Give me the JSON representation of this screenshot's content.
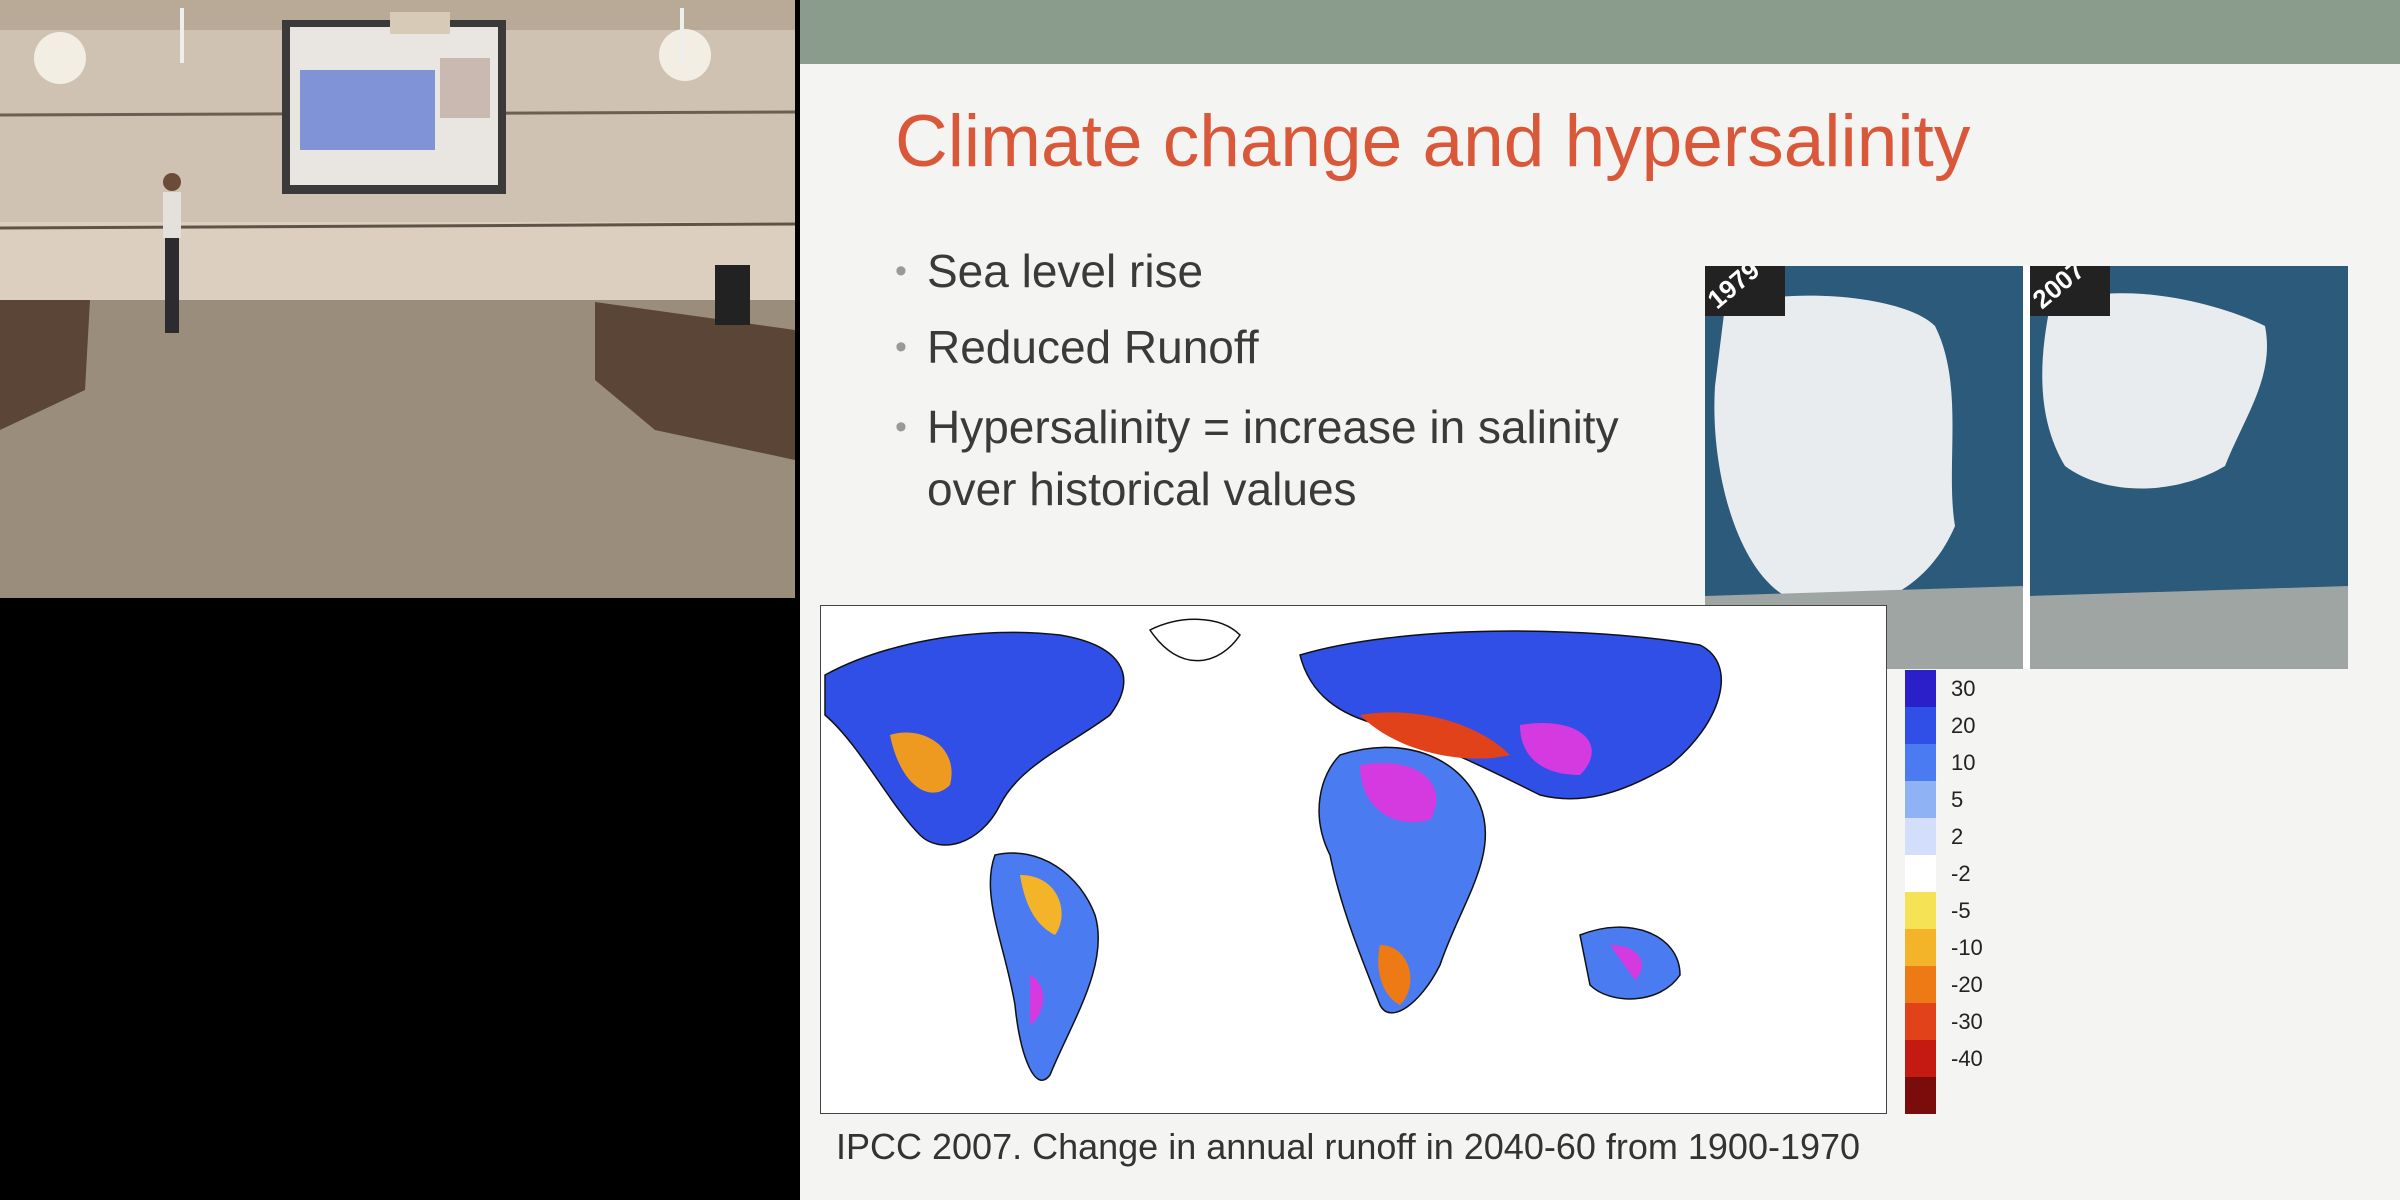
{
  "slide": {
    "title": "Climate change and hypersalinity",
    "bullets": [
      "Sea level rise",
      "Reduced Runoff",
      "Hypersalinity = increase in salinity over historical values"
    ],
    "ice_image": {
      "labels": [
        "1979",
        "2007"
      ]
    },
    "map": {
      "legend": {
        "labels": [
          "30",
          "20",
          "10",
          "5",
          "2",
          "-2",
          "-5",
          "-10",
          "-20",
          "-30",
          "-40"
        ],
        "colors": [
          "#2a1fc9",
          "#2f4fe6",
          "#4a7bf0",
          "#8fb2f5",
          "#d3dffa",
          "#ffffff",
          "#f5e255",
          "#f3b42a",
          "#ee7a16",
          "#e2421a",
          "#c51a12",
          "#7a0c0c"
        ]
      }
    },
    "caption": "IPCC 2007. Change in annual runoff in 2040-60 from 1900-1970"
  }
}
